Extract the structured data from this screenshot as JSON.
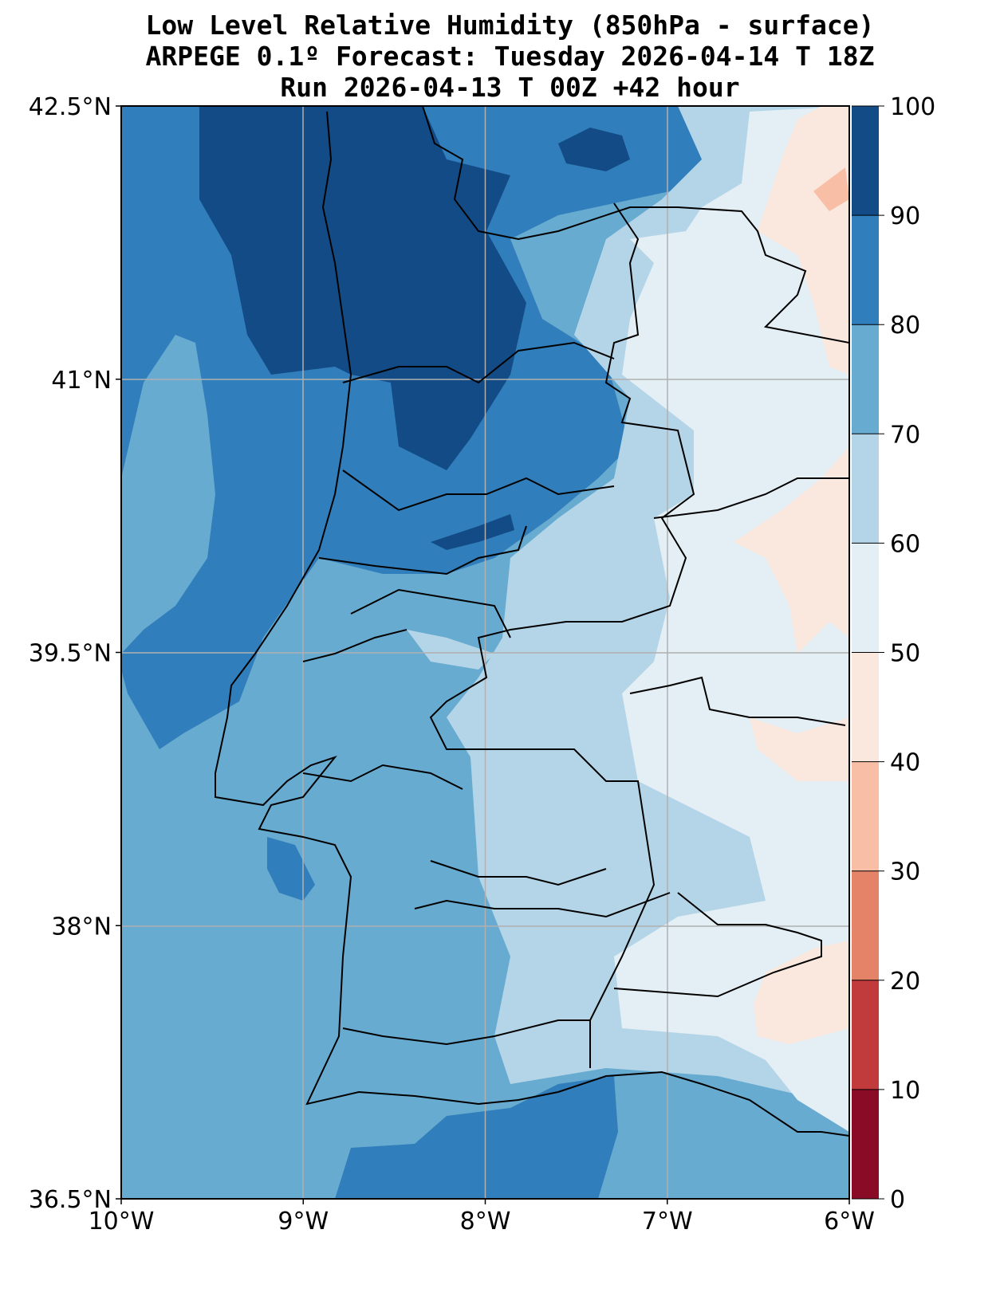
{
  "title": {
    "line1": "Low Level Relative Humidity (850hPa - surface)",
    "line2": "ARPEGE 0.1º Forecast: Tuesday 2026-04-14 T 18Z",
    "line3": "Run 2026-04-13 T 00Z +42 hour"
  },
  "axes": {
    "lon_ticks": [
      "10°W",
      "9°W",
      "8°W",
      "7°W",
      "6°W"
    ],
    "lat_ticks": [
      "42.5°N",
      "41°N",
      "39.5°N",
      "38°N",
      "36.5°N"
    ],
    "lon_range": [
      -10,
      -6
    ],
    "lat_range": [
      36.5,
      42.5
    ]
  },
  "colorbar": {
    "levels": [
      0,
      10,
      20,
      30,
      40,
      50,
      60,
      70,
      80,
      90,
      100
    ],
    "labels": [
      "0",
      "10",
      "20",
      "30",
      "40",
      "50",
      "60",
      "70",
      "80",
      "90",
      "100"
    ],
    "colors": [
      "#8a0b25",
      "#c13b3c",
      "#e58368",
      "#f9bfa6",
      "#fae8df",
      "#e4eef5",
      "#b4d5e7",
      "#68abd0",
      "#307ebb",
      "#134b86"
    ]
  }
}
